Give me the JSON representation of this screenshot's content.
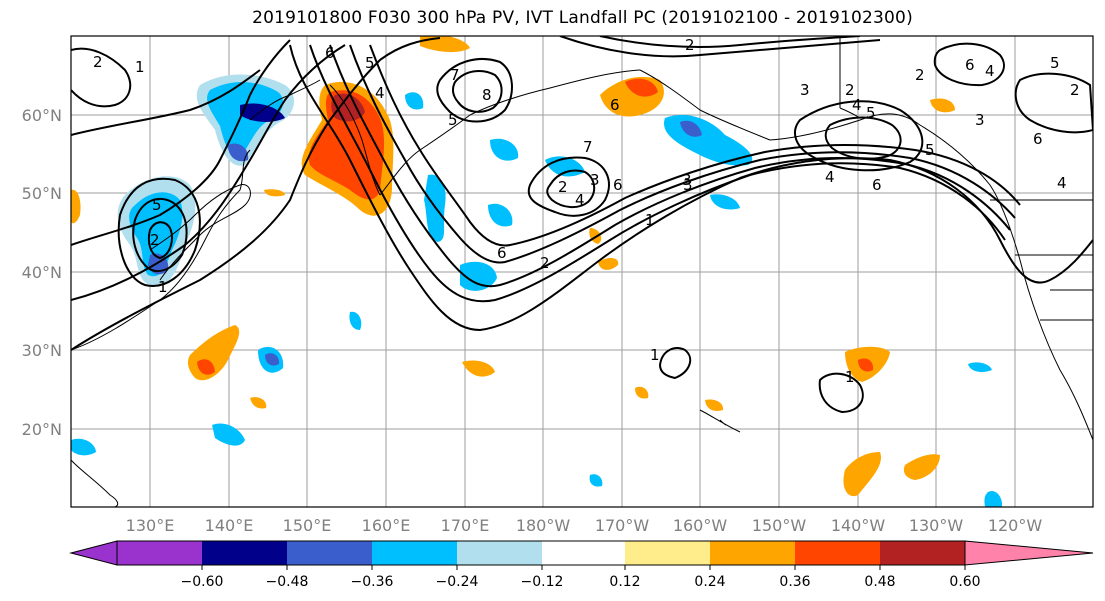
{
  "title": "2019101800 F030 300 hPa PV, IVT Landfall PC (2019102100 - 2019102300)",
  "lat_labels": [
    "60°N",
    "50°N",
    "40°N",
    "30°N",
    "20°N"
  ],
  "lon_labels": [
    "130°E",
    "140°E",
    "150°E",
    "160°E",
    "170°E",
    "180°W",
    "170°W",
    "160°W",
    "150°W",
    "140°W",
    "130°W",
    "120°W"
  ],
  "colorbar": {
    "ticks": [
      "−0.60",
      "−0.48",
      "−0.36",
      "−0.24",
      "−0.12",
      "0.12",
      "0.24",
      "0.36",
      "0.48",
      "0.60"
    ],
    "colors": [
      "#9a32cd",
      "#00008b",
      "#3a5fcd",
      "#00bfff",
      "#b2dfee",
      "#ffffff",
      "#ffec8b",
      "#ffa500",
      "#ff4500",
      "#b22222",
      "#ff82ab"
    ]
  },
  "contour_labels": [
    "1",
    "2",
    "6",
    "5",
    "7",
    "8",
    "2",
    "3",
    "4",
    "5",
    "2",
    "4",
    "5",
    "6",
    "7",
    "2",
    "3",
    "4",
    "6",
    "1",
    "6",
    "2",
    "3",
    "3",
    "4",
    "6",
    "2",
    "4",
    "1",
    "1",
    "1",
    "5",
    "2",
    "6",
    "4",
    "5",
    "2",
    "3",
    "5",
    "6"
  ]
}
